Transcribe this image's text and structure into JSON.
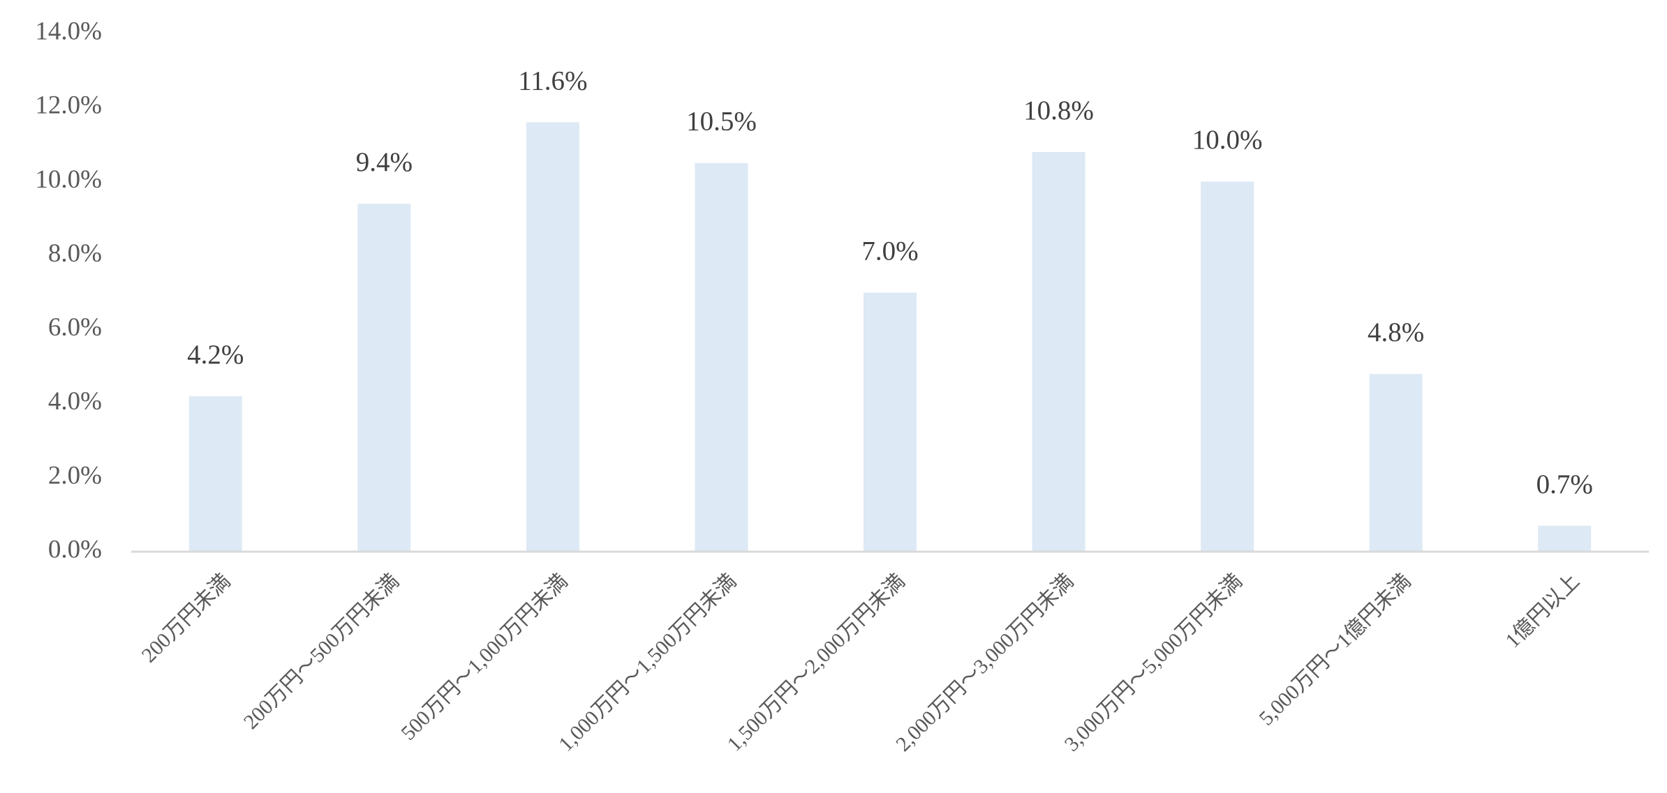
{
  "chart_data": {
    "type": "bar",
    "categories": [
      "200万円未満",
      "200万円～500万円未満",
      "500万円～1,000万円未満",
      "1,000万円～1,500万円未満",
      "1,500万円～2,000万円未満",
      "2,000万円～3,000万円未満",
      "3,000万円～5,000万円未満",
      "5,000万円～1億円未満",
      "1億円以上"
    ],
    "values": [
      4.2,
      9.4,
      11.6,
      10.5,
      7.0,
      10.8,
      10.0,
      4.8,
      0.7
    ],
    "value_labels": [
      "4.2%",
      "9.4%",
      "11.6%",
      "10.5%",
      "7.0%",
      "10.8%",
      "10.0%",
      "4.8%",
      "0.7%"
    ],
    "color": "#dde9f5",
    "ylim": [
      0,
      14
    ],
    "yticks": [
      {
        "value": 0,
        "label": "0.0%"
      },
      {
        "value": 2,
        "label": "2.0%"
      },
      {
        "value": 4,
        "label": "4.0%"
      },
      {
        "value": 6,
        "label": "6.0%"
      },
      {
        "value": 8,
        "label": "8.0%"
      },
      {
        "value": 10,
        "label": "10.0%"
      },
      {
        "value": 12,
        "label": "12.0%"
      },
      {
        "value": 14,
        "label": "14.0%"
      }
    ],
    "grid": false
  }
}
